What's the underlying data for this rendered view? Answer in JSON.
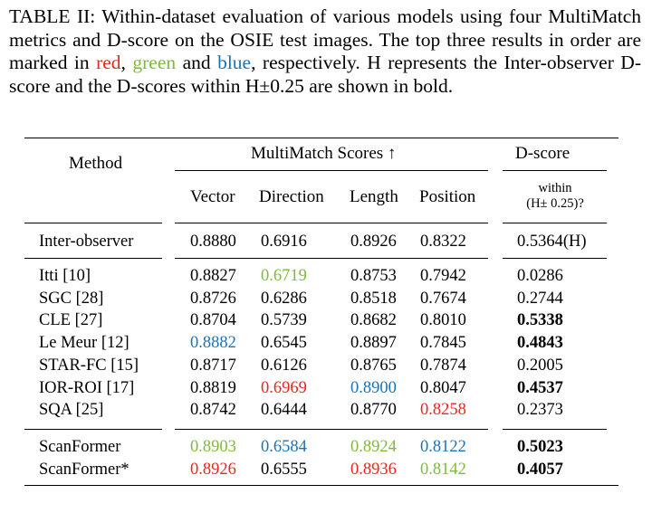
{
  "caption": {
    "part1": "TABLE II: Within-dataset evaluation of various models using four MultiMatch metrics and D-score on the OSIE test images. The top three results in order are marked in ",
    "red_word": "red",
    "comma": ", ",
    "green_word": "green",
    "and": " and ",
    "blue_word": "blue",
    "part2": ", respectively. H represents the Inter-observer D-score and the D-scores within H±0.25 are shown in bold."
  },
  "table": {
    "header": {
      "method": "Method",
      "multimatch": "MultiMatch Scores ↑",
      "dscore": "D-score",
      "vector": "Vector",
      "direction": "Direction",
      "length": "Length",
      "position": "Position",
      "within_line1": "within",
      "within_line2": "(H± 0.25)?"
    },
    "inter_observer": {
      "method": "Inter-observer",
      "vector": "0.8880",
      "direction": "0.6916",
      "length": "0.8926",
      "position": "0.8322",
      "dscore": "0.5364(H)"
    },
    "rows": [
      {
        "method": "Itti [10]",
        "vector": "0.8827",
        "direction": "0.6719",
        "length": "0.8753",
        "position": "0.7942",
        "dscore": "0.0286"
      },
      {
        "method": "SGC [28]",
        "vector": "0.8726",
        "direction": "0.6286",
        "length": "0.8518",
        "position": "0.7674",
        "dscore": "0.2744"
      },
      {
        "method": "CLE [27]",
        "vector": "0.8704",
        "direction": "0.5739",
        "length": "0.8682",
        "position": "0.8010",
        "dscore": "0.5338"
      },
      {
        "method": "Le Meur [12]",
        "vector": "0.8882",
        "direction": "0.6545",
        "length": "0.8897",
        "position": "0.7845",
        "dscore": "0.4843"
      },
      {
        "method": "STAR-FC [15]",
        "vector": "0.8717",
        "direction": "0.6126",
        "length": "0.8765",
        "position": "0.7874",
        "dscore": "0.2005"
      },
      {
        "method": "IOR-ROI [17]",
        "vector": "0.8819",
        "direction": "0.6969",
        "length": "0.8900",
        "position": "0.8047",
        "dscore": "0.4537"
      },
      {
        "method": "SQA [25]",
        "vector": "0.8742",
        "direction": "0.6444",
        "length": "0.8770",
        "position": "0.8258",
        "dscore": "0.2373"
      }
    ],
    "ours": [
      {
        "method": "ScanFormer",
        "vector": "0.8903",
        "direction": "0.6584",
        "length": "0.8924",
        "position": "0.8122",
        "dscore": "0.5023"
      },
      {
        "method": "ScanFormer*",
        "vector": "0.8926",
        "direction": "0.6555",
        "length": "0.8936",
        "position": "0.8142",
        "dscore": "0.4057"
      }
    ]
  },
  "colors": {
    "first": "#e8261e",
    "second": "#7fba3a",
    "third": "#1a73b8"
  }
}
